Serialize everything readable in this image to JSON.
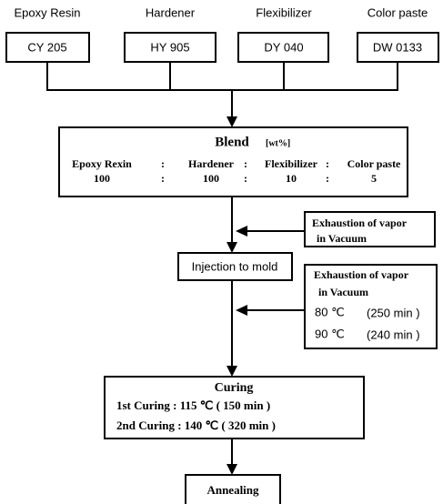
{
  "inputs": [
    {
      "label": "Epoxy Resin",
      "code": "CY 205"
    },
    {
      "label": "Hardener",
      "code": "HY 905"
    },
    {
      "label": "Flexibilizer",
      "code": "DY 040"
    },
    {
      "label": "Color paste",
      "code": "DW 0133"
    }
  ],
  "blend": {
    "title": "Blend",
    "unit": "[wt%]",
    "separator": ":",
    "components": [
      "Epoxy Rexin",
      "Hardener",
      "Flexibilizer",
      "Color paste"
    ],
    "ratios": [
      "100",
      "100",
      "10",
      "5"
    ]
  },
  "exhaustion_1": {
    "lines": [
      "Exhaustion of vapor",
      "in Vacuum"
    ]
  },
  "injection": "Injection to mold",
  "exhaustion_2": {
    "lines": [
      "Exhaustion of vapor",
      "in Vacuum"
    ],
    "conditions": [
      {
        "temp": "80 ℃",
        "time": "(250 min )"
      },
      {
        "temp": "90 ℃",
        "time": "(240 min )"
      }
    ]
  },
  "curing": {
    "title": "Curing",
    "steps": [
      "1st Curing : 115 ℃ ( 150 min )",
      "2nd Curing : 140 ℃ ( 320 min )"
    ]
  },
  "annealing": "Annealing"
}
